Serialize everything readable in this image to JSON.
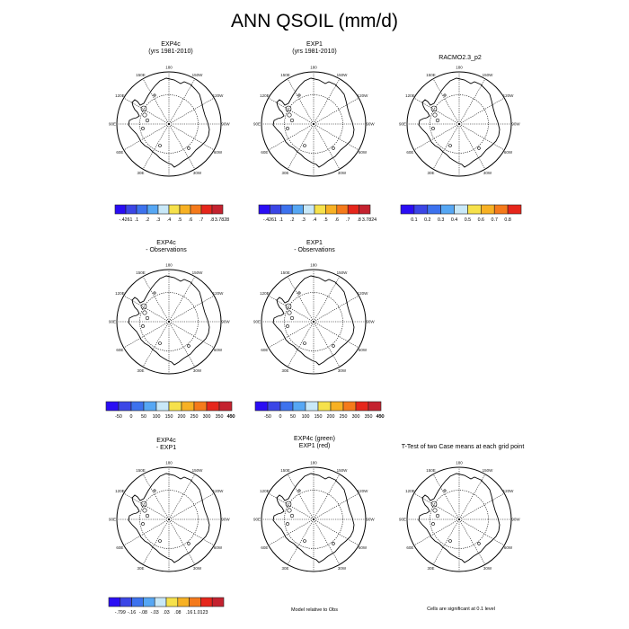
{
  "title": "ANN QSOIL (mm/d)",
  "palettes": {
    "ten": [
      "#2a0df4",
      "#3b46e6",
      "#3d72ee",
      "#56a7f4",
      "#c8e8f8",
      "#f6e14b",
      "#f7b124",
      "#f57a1b",
      "#e6261b",
      "#c4222f"
    ],
    "eight": [
      "#2a0df4",
      "#3b46e6",
      "#3d72ee",
      "#56a7f4",
      "#c8e8f8",
      "#f6e14b",
      "#f7b124",
      "#f57a1b",
      "#e6261b"
    ],
    "coast": "#000000"
  },
  "map_labels": {
    "lon": [
      "30W",
      "30E",
      "60W",
      "60E",
      "90W",
      "90E",
      "120W",
      "120E",
      "150W",
      "150E",
      "180"
    ]
  },
  "panels": [
    {
      "t1": "EXP4c",
      "t2": "(yrs 1981-2010)"
    },
    {
      "t1": "EXP1",
      "t2": "(yrs 1981-2010)"
    },
    {
      "t1": "RACMO2.3_p2",
      "t2": ""
    },
    {
      "t1": "EXP4c",
      "t2": "- Observations"
    },
    {
      "t1": "EXP1",
      "t2": "- Observations"
    },
    {
      "t1": "EXP4c",
      "t2": "- EXP1"
    },
    {
      "t1": "EXP4c (green)",
      "t2": "EXP1 (red)"
    },
    {
      "t1": "T-Test of two Case means at each grid point",
      "t2": ""
    }
  ],
  "chart_data": [
    {
      "type": "heatmap",
      "panel": "EXP4c (yrs 1981-2010)",
      "legend_labels": [
        "-.4261",
        ".1",
        ".2",
        ".3",
        ".4",
        ".5",
        ".6",
        ".7",
        ".8",
        "3.7828"
      ]
    },
    {
      "type": "heatmap",
      "panel": "EXP1 (yrs 1981-2010)",
      "legend_labels": [
        "-.4261",
        ".1",
        ".2",
        ".3",
        ".4",
        ".5",
        ".6",
        ".7",
        ".8",
        "3.7824"
      ]
    },
    {
      "type": "heatmap",
      "panel": "RACMO2.3_p2",
      "legend_labels": [
        "0.1",
        "0.2",
        "0.3",
        "0.4",
        "0.5",
        "0.6",
        "0.7",
        "0.8"
      ]
    },
    {
      "type": "heatmap",
      "panel": "EXP4c - Observations",
      "legend_labels": [
        "-50",
        "0",
        "50",
        "100",
        "150",
        "200",
        "250",
        "300",
        "350",
        "400",
        "450"
      ]
    },
    {
      "type": "heatmap",
      "panel": "EXP1 - Observations",
      "legend_labels": [
        "-50",
        "0",
        "50",
        "100",
        "150",
        "200",
        "250",
        "300",
        "350",
        "400",
        "450"
      ]
    },
    {
      "type": "heatmap",
      "panel": "EXP4c - EXP1",
      "legend_labels": [
        "-.799",
        "-.16",
        "-.08",
        "-.03",
        ".03",
        ".08",
        ".16",
        "1.0123"
      ]
    }
  ],
  "notes": {
    "model_relative": "Model relative to Obs",
    "cells_significant": "Cells are significant at 0.1 level"
  }
}
